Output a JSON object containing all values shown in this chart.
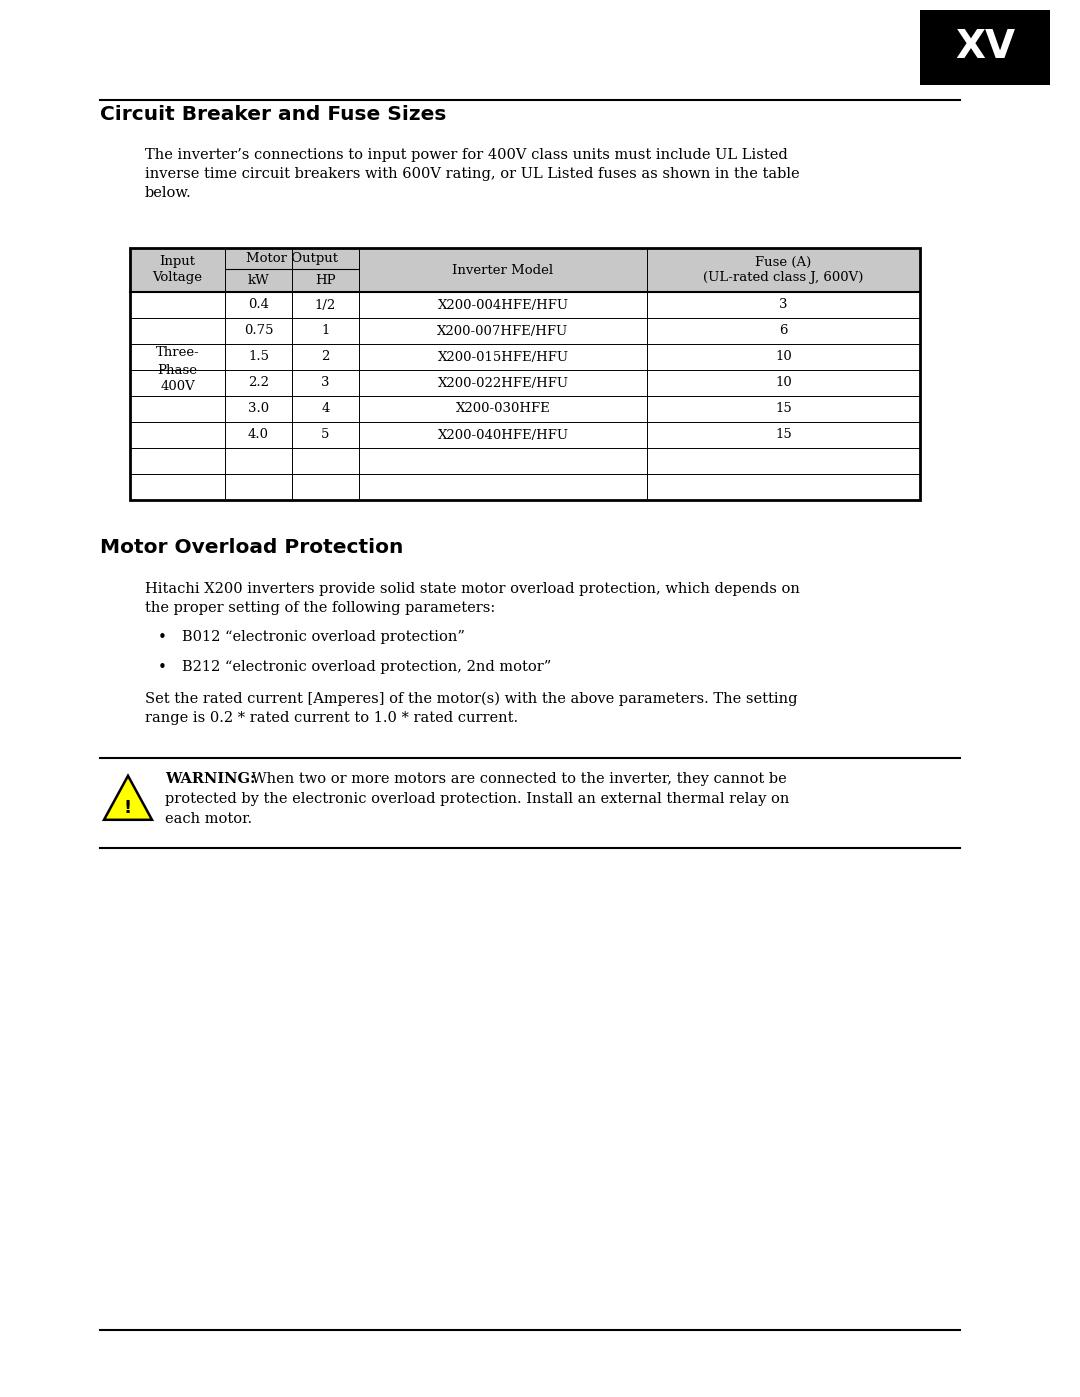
{
  "page_width": 10.8,
  "page_height": 13.97,
  "dpi": 100,
  "background_color": "#ffffff",
  "tab_label": "XV",
  "tab_bg": "#000000",
  "tab_text_color": "#ffffff",
  "section1_title": "Circuit Breaker and Fuse Sizes",
  "section1_body_lines": [
    "The inverter’s connections to input power for 400V class units must include UL Listed",
    "inverse time circuit breakers with 600V rating, or UL Listed fuses as shown in the table",
    "below."
  ],
  "table_header_bg": "#c8c8c8",
  "table_rows": [
    [
      "",
      "0.4",
      "1/2",
      "X200-004HFE/HFU",
      "3"
    ],
    [
      "",
      "0.75",
      "1",
      "X200-007HFE/HFU",
      "6"
    ],
    [
      "Three-\nPhase\n400V",
      "1.5",
      "2",
      "X200-015HFE/HFU",
      "10"
    ],
    [
      "",
      "2.2",
      "3",
      "X200-022HFE/HFU",
      "10"
    ],
    [
      "",
      "3.0",
      "4",
      "X200-030HFE",
      "15"
    ],
    [
      "",
      "4.0",
      "5",
      "X200-040HFE/HFU",
      "15"
    ],
    [
      "",
      "",
      "",
      "",
      ""
    ],
    [
      "",
      "",
      "",
      "",
      ""
    ]
  ],
  "section2_title": "Motor Overload Protection",
  "section2_body1_lines": [
    "Hitachi X200 inverters provide solid state motor overload protection, which depends on",
    "the proper setting of the following parameters:"
  ],
  "bullet1": "B012 “electronic overload protection”",
  "bullet2": "B212 “electronic overload protection, 2nd motor”",
  "section2_body2_lines": [
    "Set the rated current [Amperes] of the motor(s) with the above parameters. The setting",
    "range is 0.2 * rated current to 1.0 * rated current."
  ],
  "warning_label": "WARNING:",
  "warning_body_lines": [
    " When two or more motors are connected to the inverter, they cannot be",
    "protected by the electronic overload protection. Install an external thermal relay on",
    "each motor."
  ]
}
